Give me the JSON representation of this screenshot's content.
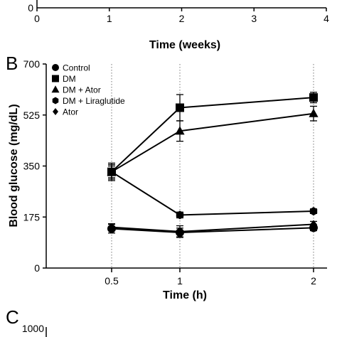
{
  "panel_a": {
    "ytick": "0",
    "xticks": [
      "0",
      "1",
      "2",
      "3",
      "4"
    ],
    "xlabel": "Time (weeks)"
  },
  "panel_c": {
    "label": "C",
    "ytick": "1000"
  },
  "chart_data": {
    "type": "line",
    "panel_label": "B",
    "xlabel": "Time (h)",
    "ylabel": "Blood glucose (mg/dL)",
    "x": [
      0.5,
      1,
      2
    ],
    "x_tick_labels": [
      "0.5",
      "1",
      "2"
    ],
    "y_ticks": [
      0,
      175,
      350,
      525,
      700
    ],
    "y_tick_labels": [
      "0",
      "175",
      "350",
      "525",
      "700"
    ],
    "ylim": [
      0,
      700
    ],
    "grid": "vertical dotted lines at x ticks",
    "legend_position": "top-left",
    "series": [
      {
        "name": "Control",
        "marker": "circle",
        "values": [
          135,
          122,
          138
        ],
        "err": [
          15,
          15,
          10
        ]
      },
      {
        "name": "DM",
        "marker": "square",
        "values": [
          330,
          550,
          585
        ],
        "err": [
          30,
          45,
          18
        ]
      },
      {
        "name": "DM + Ator",
        "marker": "triangle",
        "values": [
          330,
          470,
          530
        ],
        "err": [
          25,
          35,
          25
        ]
      },
      {
        "name": "DM + Liraglutide",
        "marker": "hexagon",
        "values": [
          330,
          182,
          195
        ],
        "err": [
          20,
          10,
          8
        ]
      },
      {
        "name": "Ator",
        "marker": "diamond",
        "values": [
          140,
          125,
          150
        ],
        "err": [
          12,
          20,
          10
        ]
      }
    ]
  }
}
